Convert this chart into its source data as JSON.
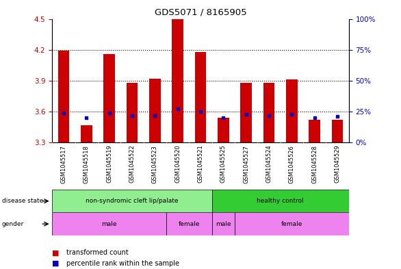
{
  "title": "GDS5071 / 8165905",
  "samples": [
    "GSM1045517",
    "GSM1045518",
    "GSM1045519",
    "GSM1045522",
    "GSM1045523",
    "GSM1045520",
    "GSM1045521",
    "GSM1045525",
    "GSM1045527",
    "GSM1045524",
    "GSM1045526",
    "GSM1045528",
    "GSM1045529"
  ],
  "transformed_count": [
    4.19,
    3.47,
    4.16,
    3.88,
    3.92,
    4.5,
    4.18,
    3.54,
    3.88,
    3.88,
    3.91,
    3.52,
    3.52
  ],
  "percentile_rank_pct": [
    24,
    20,
    24,
    22,
    22,
    27,
    25,
    20,
    23,
    22,
    23,
    20,
    21
  ],
  "bar_bottom": 3.3,
  "ylim_left": [
    3.3,
    4.5
  ],
  "ylim_right": [
    0,
    100
  ],
  "yticks_left": [
    3.3,
    3.6,
    3.9,
    4.2,
    4.5
  ],
  "yticks_right": [
    0,
    25,
    50,
    75,
    100
  ],
  "ytick_labels_right": [
    "0%",
    "25%",
    "50%",
    "75%",
    "100%"
  ],
  "bar_color": "#cc0000",
  "dot_color": "#0000cc",
  "xlabel_left_color": "#cc0000",
  "xlabel_right_color": "#0000cc",
  "disease_state_groups": [
    {
      "label": "non-syndromic cleft lip/palate",
      "start": 0,
      "end": 7,
      "color": "#90ee90"
    },
    {
      "label": "healthy control",
      "start": 7,
      "end": 13,
      "color": "#33cc33"
    }
  ],
  "gender_groups": [
    {
      "label": "male",
      "start": 0,
      "end": 5
    },
    {
      "label": "female",
      "start": 5,
      "end": 7
    },
    {
      "label": "male",
      "start": 7,
      "end": 8
    },
    {
      "label": "female",
      "start": 8,
      "end": 13
    }
  ],
  "gender_color": "#ee82ee",
  "legend_items": [
    {
      "label": "transformed count",
      "color": "#cc0000"
    },
    {
      "label": "percentile rank within the sample",
      "color": "#0000cc"
    }
  ],
  "xtick_bg_color": "#c8c8c8",
  "fig_width": 5.86,
  "fig_height": 3.93,
  "dpi": 100
}
